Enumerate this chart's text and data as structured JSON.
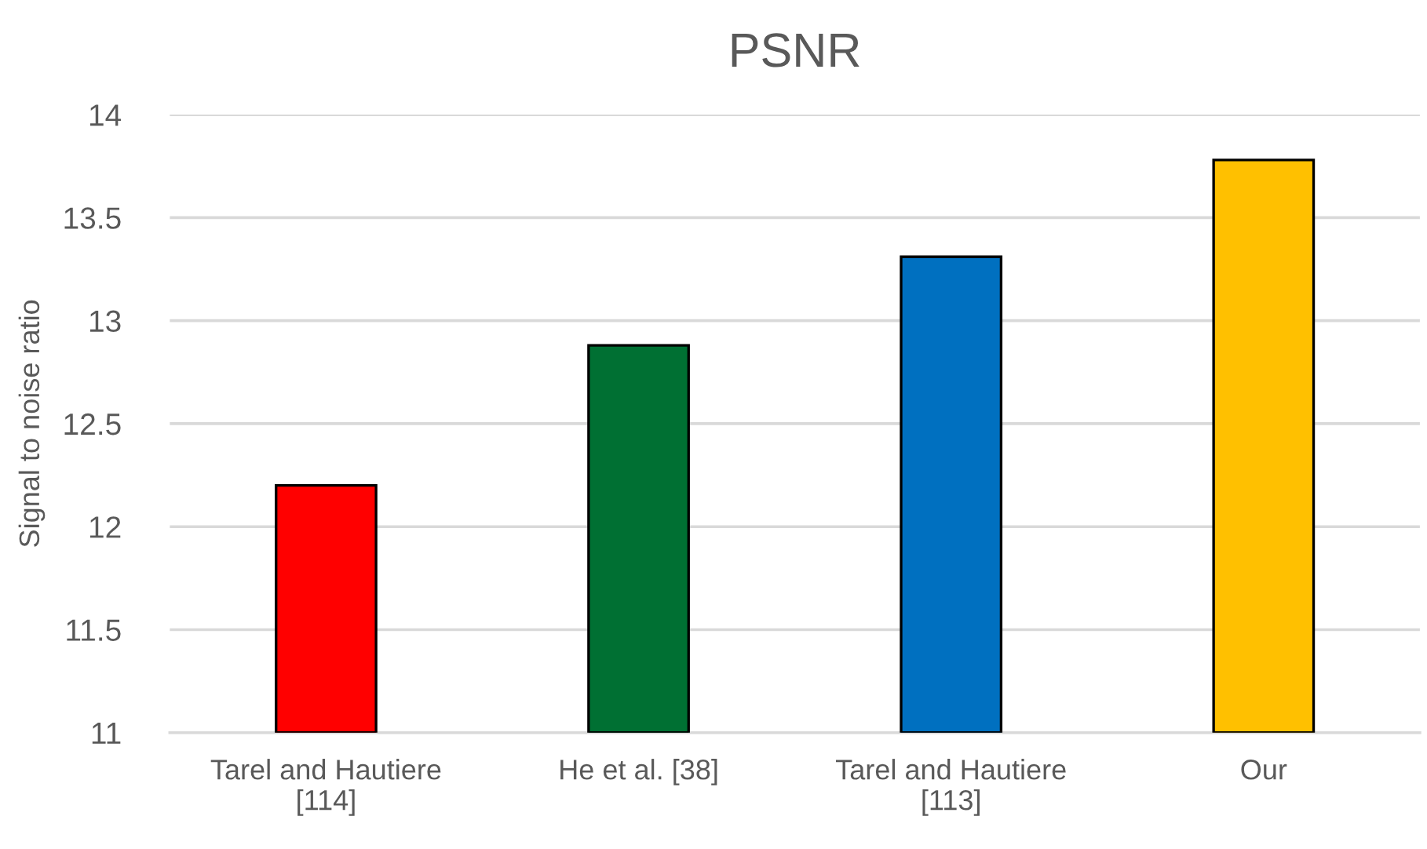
{
  "chart_data": {
    "type": "bar",
    "title": "PSNR",
    "ylabel": "Signal to noise ratio",
    "categories": [
      "Tarel and Hautiere\n[114]",
      "He et al. [38]",
      "Tarel and Hautiere\n[113]",
      "Our"
    ],
    "values": [
      12.2,
      12.88,
      13.31,
      13.78
    ],
    "colors": [
      "#ff0000",
      "#007033",
      "#0070c0",
      "#ffc000"
    ],
    "ylim": [
      11,
      14
    ],
    "yticks": [
      11,
      11.5,
      12,
      12.5,
      13,
      13.5,
      14
    ],
    "grid": "y",
    "legend": false
  }
}
